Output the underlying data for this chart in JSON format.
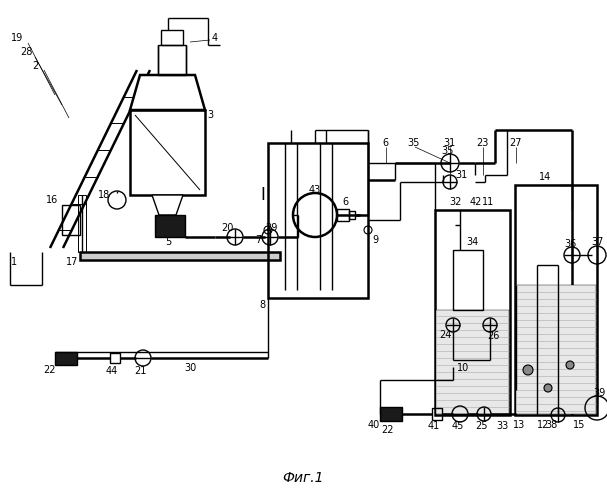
{
  "title": "Фиг.1",
  "bg": "#ffffff",
  "lc": "#000000",
  "lw": 1.0,
  "lw2": 1.8,
  "figsize": [
    6.07,
    5.0
  ],
  "dpi": 100
}
